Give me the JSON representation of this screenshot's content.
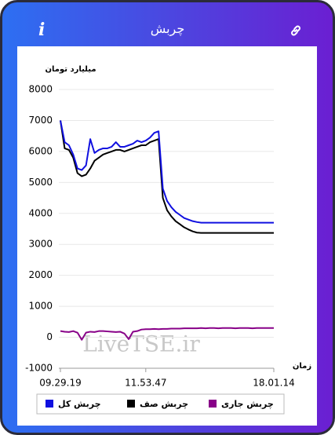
{
  "header": {
    "title": "چربش",
    "info": "i"
  },
  "chart_data": {
    "type": "line",
    "y_label": "میلیارد تومان",
    "x_label": "زمان",
    "watermark": "LiveTSE.ir",
    "categories": [
      "09.29.19",
      null,
      null,
      null,
      null,
      null,
      null,
      null,
      null,
      null,
      null,
      null,
      null,
      null,
      null,
      null,
      null,
      null,
      null,
      null,
      "11.53.47",
      null,
      null,
      null,
      null,
      null,
      null,
      null,
      null,
      null,
      null,
      null,
      null,
      null,
      null,
      null,
      null,
      null,
      null,
      null,
      null,
      null,
      null,
      null,
      null,
      null,
      null,
      null,
      null,
      null,
      "18.01.14"
    ],
    "series": [
      {
        "name": "چربش کل",
        "color": "#1010e0",
        "values": [
          7000,
          6300,
          6200,
          5900,
          5450,
          5400,
          5550,
          6400,
          5950,
          6050,
          6100,
          6100,
          6150,
          6300,
          6150,
          6150,
          6200,
          6250,
          6350,
          6300,
          6350,
          6450,
          6600,
          6650,
          4800,
          4400,
          4200,
          4050,
          3950,
          3850,
          3800,
          3750,
          3720,
          3700,
          3700,
          3700,
          3700,
          3700,
          3700,
          3700,
          3700,
          3700,
          3700,
          3700,
          3700,
          3700,
          3700,
          3700,
          3700,
          3700,
          3700
        ]
      },
      {
        "name": "چربش صف",
        "color": "#000000",
        "values": [
          7000,
          6100,
          6050,
          5800,
          5300,
          5200,
          5250,
          5450,
          5700,
          5800,
          5900,
          5950,
          6000,
          6050,
          6050,
          6000,
          6050,
          6100,
          6150,
          6200,
          6200,
          6300,
          6350,
          6400,
          4500,
          4100,
          3900,
          3750,
          3650,
          3550,
          3480,
          3420,
          3380,
          3370,
          3370,
          3370,
          3370,
          3370,
          3370,
          3370,
          3370,
          3370,
          3370,
          3370,
          3370,
          3370,
          3370,
          3370,
          3370,
          3370,
          3370
        ]
      },
      {
        "name": "چربش جاری",
        "color": "#880088",
        "values": [
          200,
          180,
          170,
          200,
          150,
          -80,
          150,
          180,
          170,
          200,
          200,
          190,
          180,
          170,
          180,
          120,
          -60,
          180,
          200,
          250,
          260,
          260,
          270,
          260,
          270,
          270,
          280,
          280,
          280,
          290,
          290,
          290,
          290,
          300,
          290,
          300,
          300,
          290,
          300,
          300,
          300,
          290,
          300,
          300,
          300,
          290,
          300,
          300,
          300,
          300,
          300
        ]
      }
    ],
    "ylim": [
      -1000,
      8000
    ],
    "yticks": [
      -1000,
      0,
      1000,
      2000,
      3000,
      4000,
      5000,
      6000,
      7000,
      8000
    ],
    "grid": true
  }
}
